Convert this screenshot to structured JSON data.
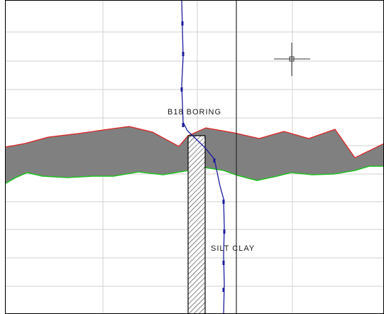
{
  "labels": {
    "boring": "B18  BORING",
    "soil": "SILT  CLAY"
  },
  "icons": {
    "cursor": "crosshair-cursor-icon",
    "hatch": "boring-hatch-pattern"
  },
  "colors": {
    "background": "#ffffff",
    "grid": "#d2d2d2",
    "band_fill": "#808080",
    "upper_profile": "#e02020",
    "lower_profile": "#22c022",
    "polyline": "#1c1c9c",
    "border": "#000000",
    "divider": "#2a2a2a",
    "cursor": "#333333"
  }
}
